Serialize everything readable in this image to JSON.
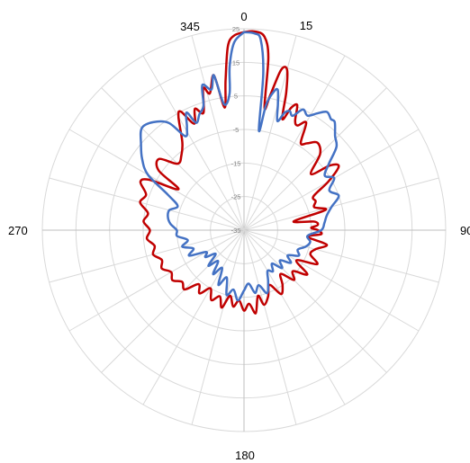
{
  "chart_data": {
    "type": "polar-line",
    "angle_labels": [
      "0",
      "15",
      "90",
      "180",
      "270",
      "345"
    ],
    "radial_tick_labels": [
      "-35",
      "-25",
      "-15",
      "-5",
      "5",
      "15",
      "25"
    ],
    "radial_range": [
      -35,
      25
    ],
    "angle_step_deg": 15,
    "grid": true,
    "colors": {
      "grid": "#d9d9d9",
      "axis": "#bfbfbf",
      "red_series": "#c00000",
      "blue_series": "#4472c4"
    },
    "series": [
      {
        "color": "#c00000",
        "points": [
          [
            0,
            24
          ],
          [
            3,
            24.3
          ],
          [
            6,
            23
          ],
          [
            8,
            17
          ],
          [
            9.5,
            2
          ],
          [
            11,
            6
          ],
          [
            13,
            14
          ],
          [
            15,
            14.5
          ],
          [
            17,
            8
          ],
          [
            19,
            0
          ],
          [
            21,
            4
          ],
          [
            23,
            5.5
          ],
          [
            25,
            1
          ],
          [
            27,
            0
          ],
          [
            30,
            2
          ],
          [
            33,
            -4
          ],
          [
            36,
            -3
          ],
          [
            40,
            -1
          ],
          [
            45,
            -3
          ],
          [
            50,
            -9
          ],
          [
            53,
            -3
          ],
          [
            56,
            -1
          ],
          [
            60,
            -6
          ],
          [
            64,
            -12
          ],
          [
            68,
            -12
          ],
          [
            72,
            -13
          ],
          [
            76,
            -10
          ],
          [
            80,
            -20
          ],
          [
            83,
            -14
          ],
          [
            86,
            -13
          ],
          [
            88,
            -15
          ],
          [
            90,
            -13
          ],
          [
            93,
            -12
          ],
          [
            96,
            -16
          ],
          [
            100,
            -10
          ],
          [
            105,
            -13
          ],
          [
            110,
            -14
          ],
          [
            115,
            -11
          ],
          [
            120,
            -17
          ],
          [
            125,
            -12
          ],
          [
            130,
            -16
          ],
          [
            135,
            -14
          ],
          [
            140,
            -18
          ],
          [
            145,
            -15
          ],
          [
            150,
            -13
          ],
          [
            155,
            -17
          ],
          [
            160,
            -14
          ],
          [
            165,
            -12
          ],
          [
            168,
            -15
          ],
          [
            172,
            -10
          ],
          [
            176,
            -13
          ],
          [
            180,
            -11
          ],
          [
            184,
            -14
          ],
          [
            188,
            -12
          ],
          [
            192,
            -15
          ],
          [
            196,
            -11
          ],
          [
            200,
            -14
          ],
          [
            205,
            -12
          ],
          [
            210,
            -15
          ],
          [
            215,
            -12
          ],
          [
            220,
            -14
          ],
          [
            225,
            -10
          ],
          [
            230,
            -11
          ],
          [
            235,
            -9
          ],
          [
            240,
            -10
          ],
          [
            245,
            -8
          ],
          [
            250,
            -9
          ],
          [
            255,
            -7
          ],
          [
            260,
            -8
          ],
          [
            265,
            -6
          ],
          [
            270,
            -7
          ],
          [
            275,
            -5
          ],
          [
            280,
            -6
          ],
          [
            285,
            -3
          ],
          [
            290,
            -4
          ],
          [
            295,
            -1
          ],
          [
            298,
            -3
          ],
          [
            302,
            -12
          ],
          [
            305,
            -4
          ],
          [
            310,
            -2
          ],
          [
            315,
            -7
          ],
          [
            320,
            -6
          ],
          [
            325,
            -3
          ],
          [
            330,
            4
          ],
          [
            332,
            5
          ],
          [
            335,
            0
          ],
          [
            338,
            4
          ],
          [
            341,
            2
          ],
          [
            344,
            9
          ],
          [
            346,
            7
          ],
          [
            349,
            12
          ],
          [
            351,
            2
          ],
          [
            353,
            10
          ],
          [
            355,
            20
          ],
          [
            357,
            23
          ],
          [
            360,
            24
          ]
        ]
      },
      {
        "color": "#4472c4",
        "points": [
          [
            0,
            24
          ],
          [
            3,
            23.7
          ],
          [
            5,
            22
          ],
          [
            7,
            12
          ],
          [
            8.5,
            -5
          ],
          [
            10,
            3
          ],
          [
            12,
            7
          ],
          [
            13.5,
            8
          ],
          [
            15,
            4
          ],
          [
            17,
            -1
          ],
          [
            19,
            2
          ],
          [
            21,
            3
          ],
          [
            23,
            2
          ],
          [
            26,
            5
          ],
          [
            29,
            4
          ],
          [
            32,
            6
          ],
          [
            35,
            8
          ],
          [
            38,
            7
          ],
          [
            40,
            7
          ],
          [
            44,
            4
          ],
          [
            48,
            2
          ],
          [
            52,
            -3
          ],
          [
            56,
            -6
          ],
          [
            60,
            -4
          ],
          [
            65,
            -7
          ],
          [
            70,
            -5
          ],
          [
            75,
            -8
          ],
          [
            80,
            -10
          ],
          [
            85,
            -11
          ],
          [
            90,
            -12
          ],
          [
            95,
            -16
          ],
          [
            100,
            -15
          ],
          [
            105,
            -16
          ],
          [
            110,
            -18
          ],
          [
            115,
            -17
          ],
          [
            120,
            -20
          ],
          [
            125,
            -18
          ],
          [
            130,
            -21
          ],
          [
            135,
            -19
          ],
          [
            140,
            -22
          ],
          [
            145,
            -20
          ],
          [
            150,
            -21
          ],
          [
            155,
            -18
          ],
          [
            160,
            -15
          ],
          [
            165,
            -18
          ],
          [
            170,
            -16
          ],
          [
            175,
            -19
          ],
          [
            180,
            -17
          ],
          [
            185,
            -14
          ],
          [
            190,
            -17
          ],
          [
            195,
            -15
          ],
          [
            200,
            -20
          ],
          [
            205,
            -17
          ],
          [
            210,
            -22
          ],
          [
            215,
            -19
          ],
          [
            220,
            -23
          ],
          [
            225,
            -20
          ],
          [
            230,
            -24
          ],
          [
            235,
            -21
          ],
          [
            240,
            -22
          ],
          [
            245,
            -17
          ],
          [
            250,
            -19
          ],
          [
            255,
            -16
          ],
          [
            260,
            -18
          ],
          [
            265,
            -15
          ],
          [
            270,
            -15
          ],
          [
            275,
            -13
          ],
          [
            280,
            -12
          ],
          [
            285,
            -12
          ],
          [
            290,
            -14
          ],
          [
            295,
            -10
          ],
          [
            300,
            -2
          ],
          [
            305,
            2
          ],
          [
            310,
            5
          ],
          [
            315,
            8
          ],
          [
            320,
            7
          ],
          [
            325,
            4
          ],
          [
            328,
            -2
          ],
          [
            331,
            0
          ],
          [
            334,
            4
          ],
          [
            336,
            0
          ],
          [
            339,
            2
          ],
          [
            342,
            4
          ],
          [
            344,
            10
          ],
          [
            347,
            8
          ],
          [
            349,
            12
          ],
          [
            351,
            3
          ],
          [
            354,
            6
          ],
          [
            355,
            14
          ],
          [
            357,
            21
          ],
          [
            360,
            24
          ]
        ]
      }
    ]
  }
}
